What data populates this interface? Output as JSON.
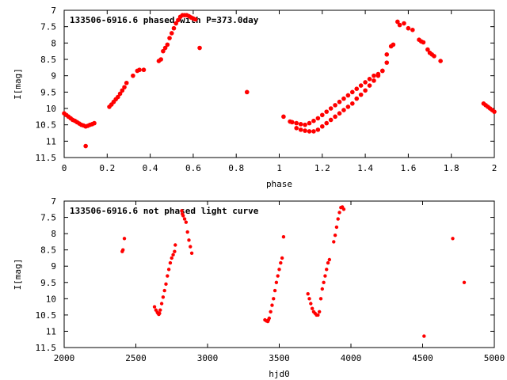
{
  "colors": {
    "points": "#ff0000",
    "axis": "#000000",
    "background": "#ffffff"
  },
  "chart_data": [
    {
      "type": "scatter",
      "title": "133506-6916.6 phased with P=373.0day",
      "xlabel": "phase",
      "ylabel": "I[mag]",
      "xlim": [
        0,
        2
      ],
      "ylim": [
        7,
        11.5
      ],
      "y_inverted": true,
      "grid": false,
      "x_ticks": [
        "0",
        "0.2",
        "0.4",
        "0.6",
        "0.8",
        "1",
        "1.2",
        "1.4",
        "1.6",
        "1.8",
        "2"
      ],
      "y_ticks": [
        "7",
        "7.5",
        "8",
        "8.5",
        "9",
        "9.5",
        "10",
        "10.5",
        "11",
        "11.5"
      ],
      "series": [
        {
          "points": [
            [
              0.0,
              10.15
            ],
            [
              0.01,
              10.2
            ],
            [
              0.02,
              10.25
            ],
            [
              0.03,
              10.3
            ],
            [
              0.04,
              10.35
            ],
            [
              0.05,
              10.38
            ],
            [
              0.06,
              10.42
            ],
            [
              0.07,
              10.46
            ],
            [
              0.08,
              10.5
            ],
            [
              0.09,
              10.52
            ],
            [
              0.1,
              10.55
            ],
            [
              0.11,
              10.53
            ],
            [
              0.12,
              10.5
            ],
            [
              0.13,
              10.48
            ],
            [
              0.14,
              10.45
            ],
            [
              0.1,
              11.15
            ],
            [
              0.21,
              9.95
            ],
            [
              0.22,
              9.88
            ],
            [
              0.23,
              9.8
            ],
            [
              0.24,
              9.72
            ],
            [
              0.25,
              9.65
            ],
            [
              0.26,
              9.55
            ],
            [
              0.27,
              9.45
            ],
            [
              0.28,
              9.35
            ],
            [
              0.29,
              9.22
            ],
            [
              0.32,
              9.0
            ],
            [
              0.34,
              8.85
            ],
            [
              0.35,
              8.82
            ],
            [
              0.37,
              8.82
            ],
            [
              0.44,
              8.55
            ],
            [
              0.45,
              8.5
            ],
            [
              0.46,
              8.25
            ],
            [
              0.47,
              8.15
            ],
            [
              0.48,
              8.05
            ],
            [
              0.49,
              7.85
            ],
            [
              0.5,
              7.7
            ],
            [
              0.51,
              7.55
            ],
            [
              0.52,
              7.4
            ],
            [
              0.53,
              7.3
            ],
            [
              0.54,
              7.2
            ],
            [
              0.55,
              7.15
            ],
            [
              0.56,
              7.15
            ],
            [
              0.57,
              7.15
            ],
            [
              0.58,
              7.18
            ],
            [
              0.59,
              7.22
            ],
            [
              0.6,
              7.25
            ],
            [
              0.61,
              7.28
            ],
            [
              0.63,
              8.15
            ],
            [
              0.85,
              9.5
            ],
            [
              1.02,
              10.25
            ],
            [
              1.05,
              10.4
            ],
            [
              1.06,
              10.42
            ],
            [
              1.08,
              10.45
            ],
            [
              1.1,
              10.48
            ],
            [
              1.12,
              10.5
            ],
            [
              1.14,
              10.45
            ],
            [
              1.16,
              10.38
            ],
            [
              1.18,
              10.3
            ],
            [
              1.2,
              10.2
            ],
            [
              1.22,
              10.1
            ],
            [
              1.24,
              10.0
            ],
            [
              1.26,
              9.9
            ],
            [
              1.28,
              9.8
            ],
            [
              1.3,
              9.7
            ],
            [
              1.32,
              9.6
            ],
            [
              1.34,
              9.5
            ],
            [
              1.36,
              9.4
            ],
            [
              1.38,
              9.3
            ],
            [
              1.4,
              9.2
            ],
            [
              1.42,
              9.1
            ],
            [
              1.44,
              9.0
            ],
            [
              1.46,
              8.95
            ],
            [
              1.48,
              8.85
            ],
            [
              1.08,
              10.6
            ],
            [
              1.1,
              10.65
            ],
            [
              1.12,
              10.68
            ],
            [
              1.14,
              10.7
            ],
            [
              1.16,
              10.7
            ],
            [
              1.18,
              10.65
            ],
            [
              1.2,
              10.55
            ],
            [
              1.22,
              10.45
            ],
            [
              1.24,
              10.35
            ],
            [
              1.26,
              10.25
            ],
            [
              1.28,
              10.15
            ],
            [
              1.3,
              10.05
            ],
            [
              1.32,
              9.95
            ],
            [
              1.34,
              9.85
            ],
            [
              1.36,
              9.7
            ],
            [
              1.38,
              9.58
            ],
            [
              1.4,
              9.45
            ],
            [
              1.42,
              9.3
            ],
            [
              1.44,
              9.15
            ],
            [
              1.46,
              9.0
            ],
            [
              1.48,
              8.85
            ],
            [
              1.5,
              8.6
            ],
            [
              1.5,
              8.35
            ],
            [
              1.52,
              8.1
            ],
            [
              1.53,
              8.05
            ],
            [
              1.55,
              7.35
            ],
            [
              1.56,
              7.45
            ],
            [
              1.58,
              7.4
            ],
            [
              1.6,
              7.55
            ],
            [
              1.62,
              7.6
            ],
            [
              1.65,
              7.9
            ],
            [
              1.66,
              7.95
            ],
            [
              1.67,
              7.98
            ],
            [
              1.69,
              8.2
            ],
            [
              1.7,
              8.3
            ],
            [
              1.71,
              8.35
            ],
            [
              1.72,
              8.4
            ],
            [
              1.75,
              8.55
            ],
            [
              1.95,
              9.85
            ],
            [
              1.96,
              9.9
            ],
            [
              1.97,
              9.95
            ],
            [
              1.98,
              10.0
            ],
            [
              1.99,
              10.05
            ],
            [
              2.0,
              10.1
            ]
          ]
        }
      ]
    },
    {
      "type": "scatter",
      "title": "133506-6916.6 not phased light curve",
      "xlabel": "hjd0",
      "ylabel": "I[mag]",
      "xlim": [
        2000,
        5000
      ],
      "ylim": [
        7,
        11.5
      ],
      "y_inverted": true,
      "grid": false,
      "x_ticks": [
        "2000",
        "2500",
        "3000",
        "3500",
        "4000",
        "4500",
        "5000"
      ],
      "y_ticks": [
        "7",
        "7.5",
        "8",
        "8.5",
        "9",
        "9.5",
        "10",
        "10.5",
        "11",
        "11.5"
      ],
      "series": [
        {
          "points": [
            [
              2405,
              8.55
            ],
            [
              2410,
              8.5
            ],
            [
              2420,
              8.15
            ],
            [
              2630,
              10.25
            ],
            [
              2640,
              10.35
            ],
            [
              2650,
              10.42
            ],
            [
              2655,
              10.45
            ],
            [
              2660,
              10.48
            ],
            [
              2665,
              10.45
            ],
            [
              2670,
              10.35
            ],
            [
              2680,
              10.15
            ],
            [
              2690,
              9.95
            ],
            [
              2700,
              9.75
            ],
            [
              2710,
              9.55
            ],
            [
              2720,
              9.3
            ],
            [
              2730,
              9.1
            ],
            [
              2740,
              8.9
            ],
            [
              2750,
              8.75
            ],
            [
              2760,
              8.65
            ],
            [
              2770,
              8.55
            ],
            [
              2775,
              8.35
            ],
            [
              2820,
              7.3
            ],
            [
              2825,
              7.4
            ],
            [
              2830,
              7.45
            ],
            [
              2840,
              7.55
            ],
            [
              2850,
              7.65
            ],
            [
              2860,
              7.95
            ],
            [
              2870,
              8.2
            ],
            [
              2880,
              8.4
            ],
            [
              2890,
              8.6
            ],
            [
              3400,
              10.65
            ],
            [
              3410,
              10.68
            ],
            [
              3420,
              10.7
            ],
            [
              3425,
              10.65
            ],
            [
              3430,
              10.6
            ],
            [
              3440,
              10.4
            ],
            [
              3450,
              10.2
            ],
            [
              3460,
              10.0
            ],
            [
              3470,
              9.75
            ],
            [
              3480,
              9.5
            ],
            [
              3490,
              9.3
            ],
            [
              3500,
              9.1
            ],
            [
              3510,
              8.9
            ],
            [
              3520,
              8.75
            ],
            [
              3530,
              8.1
            ],
            [
              3700,
              9.85
            ],
            [
              3710,
              10.0
            ],
            [
              3720,
              10.15
            ],
            [
              3730,
              10.3
            ],
            [
              3740,
              10.4
            ],
            [
              3750,
              10.45
            ],
            [
              3760,
              10.5
            ],
            [
              3770,
              10.5
            ],
            [
              3780,
              10.4
            ],
            [
              3790,
              10.0
            ],
            [
              3800,
              9.7
            ],
            [
              3810,
              9.5
            ],
            [
              3820,
              9.3
            ],
            [
              3830,
              9.1
            ],
            [
              3840,
              8.9
            ],
            [
              3850,
              8.8
            ],
            [
              3880,
              8.25
            ],
            [
              3890,
              8.05
            ],
            [
              3900,
              7.8
            ],
            [
              3910,
              7.55
            ],
            [
              3920,
              7.35
            ],
            [
              3930,
              7.2
            ],
            [
              3940,
              7.18
            ],
            [
              3950,
              7.25
            ],
            [
              4510,
              11.15
            ],
            [
              4710,
              8.15
            ],
            [
              4790,
              9.5
            ]
          ]
        }
      ]
    }
  ]
}
